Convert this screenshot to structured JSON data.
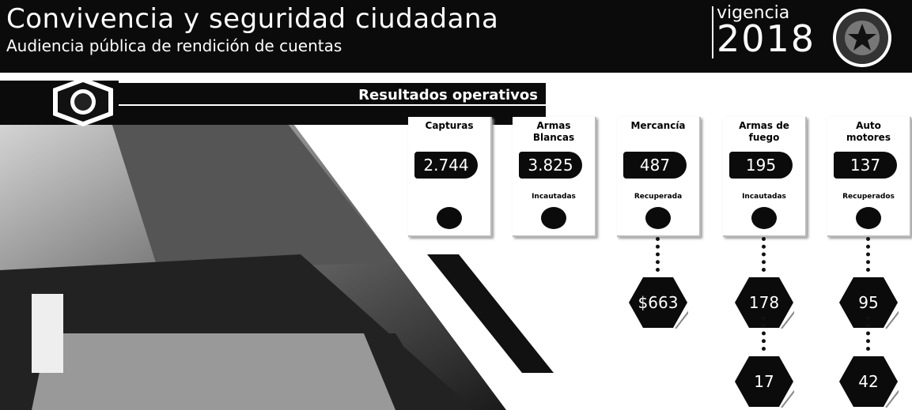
{
  "header": {
    "title": "Convivencia y seguridad ciudadana",
    "subtitle": "Audiencia pública de rendición de cuentas",
    "vigencia": "vigencia",
    "year": "2018"
  },
  "banner": "Resultados operativos",
  "cards": [
    {
      "label": "Capturas",
      "value": "2.744",
      "extras": []
    },
    {
      "label": "Armas Blancas",
      "value": "3.825",
      "sublabel": "Incautadas",
      "extras": []
    },
    {
      "label": "Mercancía",
      "value": "487",
      "sublabel": "Recuperada",
      "extras": [
        "$663"
      ]
    },
    {
      "label": "Armas de fuego",
      "value": "195",
      "sublabel": "Incautadas",
      "extras": [
        "178",
        "17"
      ]
    },
    {
      "label": "Auto motores",
      "value": "137",
      "sublabel": "Recuperados",
      "extras": [
        "95",
        "42"
      ]
    }
  ]
}
